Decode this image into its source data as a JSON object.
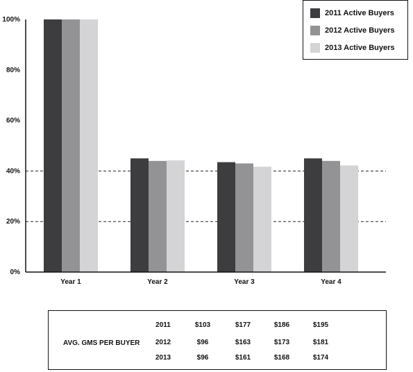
{
  "chart_data": {
    "type": "bar",
    "categories": [
      "Year 1",
      "Year 2",
      "Year 3",
      "Year 4"
    ],
    "series": [
      {
        "name": "2011 Active Buyers",
        "color": "#3d3d3f",
        "values": [
          100,
          45,
          43.5,
          45
        ]
      },
      {
        "name": "2012 Active Buyers",
        "color": "#939396",
        "values": [
          100,
          44,
          43,
          44
        ]
      },
      {
        "name": "2013 Active Buyers",
        "color": "#d4d4d6",
        "values": [
          100,
          44.2,
          41.7,
          42.2
        ]
      }
    ],
    "ylim": [
      0,
      100
    ],
    "yticks": [
      0,
      20,
      40,
      60,
      80,
      100
    ],
    "ytick_labels": [
      "0%",
      "20%",
      "40%",
      "60%",
      "80%",
      "100%"
    ],
    "dashed_gridlines": [
      20,
      40
    ],
    "legend_position": "top-right",
    "title": "",
    "xlabel": "",
    "ylabel": ""
  },
  "gms_table": {
    "label": "AVG. GMS PER BUYER",
    "rows": [
      {
        "year": "2011",
        "values": [
          "$103",
          "$177",
          "$186",
          "$195"
        ]
      },
      {
        "year": "2012",
        "values": [
          "$96",
          "$163",
          "$173",
          "$181"
        ]
      },
      {
        "year": "2013",
        "values": [
          "$96",
          "$161",
          "$168",
          "$174"
        ]
      }
    ]
  }
}
